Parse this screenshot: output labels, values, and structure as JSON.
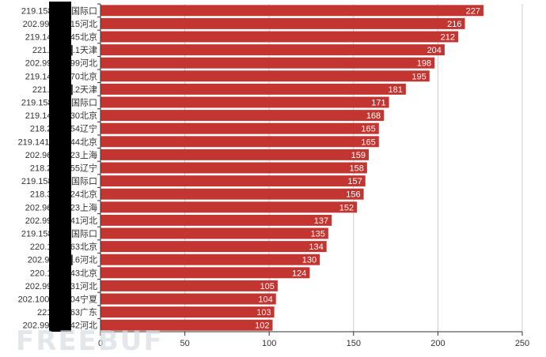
{
  "chart_data": {
    "type": "bar",
    "orientation": "horizontal",
    "categories": [
      "219.158███国际口",
      "202.99.███15河北",
      "219.14███45北京",
      "221.2███.1天津",
      "202.99███99河北",
      "219.14███70北京",
      "221.2███.2天津",
      "219.158███国际口",
      "219.14███30北京",
      "218.2███54辽宁",
      "219.141.███44北京",
      "202.96███23上海",
      "218.2███55辽宁",
      "219.158███国际口",
      "218.3███24北京",
      "202.96███23上海",
      "202.99███41河北",
      "219.158███国际口",
      "220.1███63北京",
      "202.99███.6河北",
      "220.1███43北京",
      "202.99███31河北",
      "202.100.███04宁夏",
      "221███63广东",
      "202.99.███42河北"
    ],
    "values": [
      227,
      216,
      212,
      204,
      198,
      195,
      181,
      171,
      168,
      165,
      165,
      159,
      158,
      157,
      156,
      152,
      137,
      135,
      134,
      130,
      124,
      105,
      104,
      103,
      102
    ],
    "xlim": [
      0,
      250
    ],
    "xticks": [
      "0",
      "50",
      "100",
      "150",
      "200",
      "250"
    ],
    "grid": true,
    "bar_color": "#c23531",
    "label_color": "#ffffff",
    "axis_color": "#333333",
    "grid_color": "#cccccc",
    "redaction_color": "#000000"
  },
  "watermark": "FREEBUF"
}
